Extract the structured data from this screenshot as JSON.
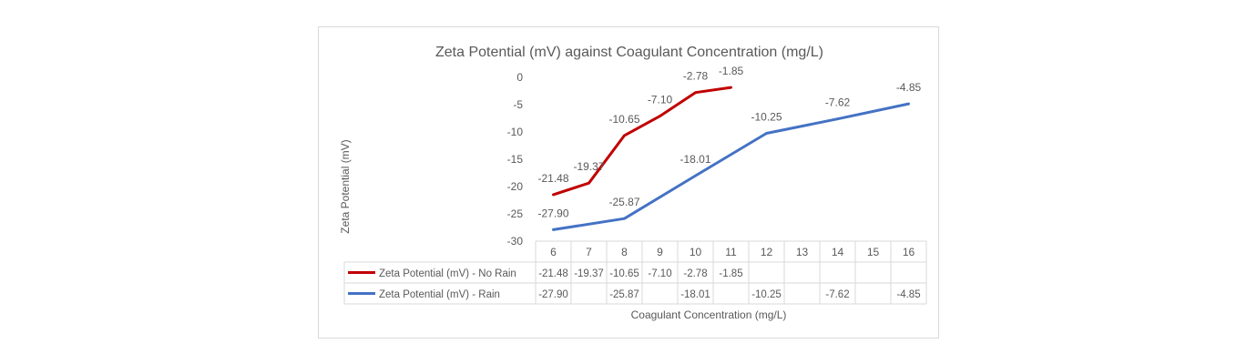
{
  "chart_data": {
    "type": "line",
    "title": "Zeta Potential (mV) against Coagulant Concentration (mg/L)",
    "xlabel": "Coagulant Concentration (mg/L)",
    "ylabel": "Zeta Potential (mV)",
    "categories": [
      "6",
      "7",
      "8",
      "9",
      "10",
      "11",
      "12",
      "13",
      "14",
      "15",
      "16"
    ],
    "ylim": [
      -30,
      0
    ],
    "yticks": [
      0,
      -5,
      -10,
      -15,
      -20,
      -25,
      -30
    ],
    "grid": false,
    "legend": "data-table",
    "series": [
      {
        "name": "Zeta Potential (mV) - No Rain",
        "color": "#c00000",
        "values": [
          -21.48,
          -19.37,
          -10.65,
          -7.1,
          -2.78,
          -1.85,
          null,
          null,
          null,
          null,
          null
        ],
        "labels": [
          "-21.48",
          "-19.37",
          "-10.65",
          "-7.10",
          "-2.78",
          "-1.85",
          "",
          "",
          "",
          "",
          ""
        ]
      },
      {
        "name": "Zeta Potential (mV) - Rain",
        "color": "#4472c4",
        "values": [
          -27.9,
          null,
          -25.87,
          null,
          -18.01,
          null,
          -10.25,
          null,
          -7.62,
          null,
          -4.85
        ],
        "labels": [
          "-27.90",
          "",
          "-25.87",
          "",
          "-18.01",
          "",
          "-10.25",
          "",
          "-7.62",
          "",
          "-4.85"
        ]
      }
    ]
  }
}
